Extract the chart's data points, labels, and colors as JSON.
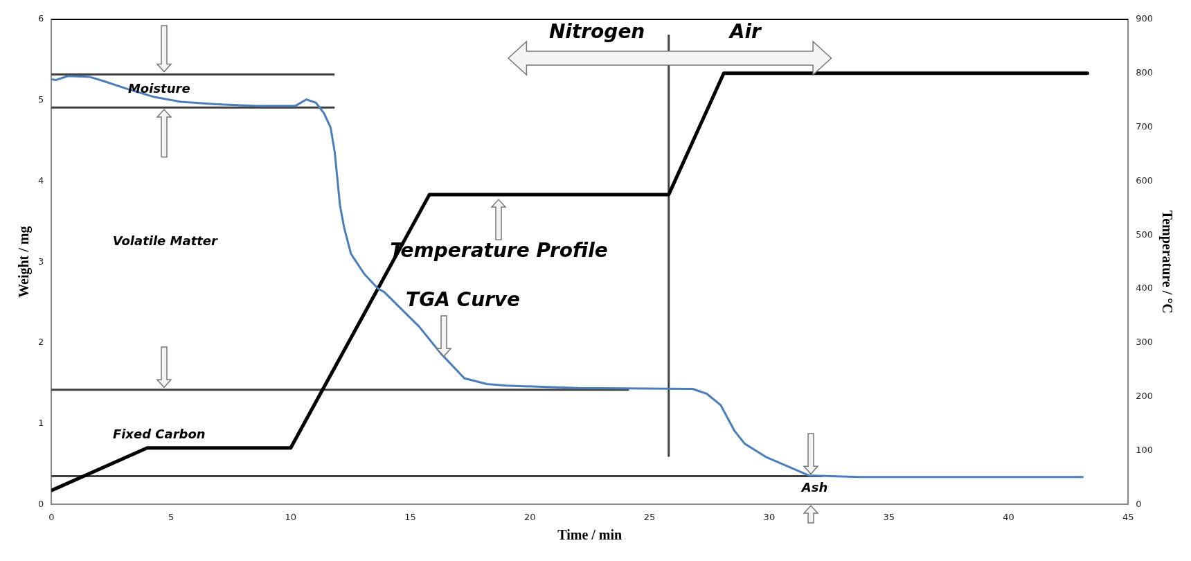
{
  "chart_data": {
    "type": "line",
    "xlabel": "Time / min",
    "ylabel": "Weight / mg",
    "y2label": "Temperature / °C",
    "xlim": [
      0,
      45
    ],
    "xticks": [
      0,
      5,
      10,
      15,
      20,
      25,
      30,
      35,
      40,
      45
    ],
    "ylim": [
      0,
      6
    ],
    "yticks": [
      0,
      1,
      2,
      3,
      4,
      5,
      6
    ],
    "y2lim": [
      0,
      900
    ],
    "y2ticks": [
      0,
      100,
      200,
      300,
      400,
      500,
      600,
      700,
      800,
      900
    ],
    "grid": false,
    "legend": false,
    "marker": "none",
    "line_style": "solid",
    "series": [
      {
        "color": "#4a7ebb",
        "axis": "y",
        "x": [
          0,
          0.18,
          0.69,
          1.59,
          2.15,
          3.17,
          4.3,
          5.42,
          6.89,
          8.58,
          10.2,
          10.66,
          11.05,
          11.39,
          11.67,
          11.84,
          11.95,
          12.06,
          12.23,
          12.52,
          13.08,
          13.65,
          13.9,
          15.37,
          16.27,
          17.26,
          18.2,
          19,
          22,
          26.8,
          27.39,
          27.97,
          28.55,
          28.98,
          29.85,
          30.86,
          31.65,
          33.75,
          43.1
        ],
        "values": [
          5.26,
          5.25,
          5.3,
          5.29,
          5.24,
          5.14,
          5.04,
          4.98,
          4.95,
          4.93,
          4.93,
          5.01,
          4.97,
          4.84,
          4.66,
          4.36,
          4.03,
          3.7,
          3.43,
          3.1,
          2.85,
          2.67,
          2.63,
          2.2,
          1.87,
          1.56,
          1.49,
          1.47,
          1.44,
          1.43,
          1.37,
          1.23,
          0.91,
          0.75,
          0.59,
          0.46,
          0.36,
          0.34,
          0.34
        ]
      },
      {
        "color": "#000000",
        "axis": "y2",
        "x": [
          0,
          4,
          10,
          15.8,
          25.8,
          28.1,
          43.3
        ],
        "values": [
          26,
          105,
          105,
          575,
          575,
          800,
          800
        ]
      },
      {
        "color": "#404040",
        "axis": "y",
        "x": [
          0,
          11.8
        ],
        "values": [
          5.32,
          5.32
        ]
      },
      {
        "color": "#404040",
        "axis": "y",
        "x": [
          0,
          11.8
        ],
        "values": [
          4.91,
          4.91
        ]
      },
      {
        "color": "#404040",
        "axis": "y",
        "x": [
          0,
          24.1
        ],
        "values": [
          1.42,
          1.42
        ]
      },
      {
        "color": "#404040",
        "axis": "y",
        "x": [
          0,
          32.2
        ],
        "values": [
          0.35,
          0.35
        ]
      },
      {
        "color": "#404040",
        "axis": "y",
        "x": [
          25.8,
          25.8
        ],
        "values": [
          0.6,
          5.8
        ]
      }
    ],
    "annotations": [
      "Moisture",
      "Volatile Matter",
      "Fixed Carbon",
      "Ash",
      "Nitrogen",
      "Air",
      "Temperature Profile",
      "TGA Curve"
    ]
  }
}
